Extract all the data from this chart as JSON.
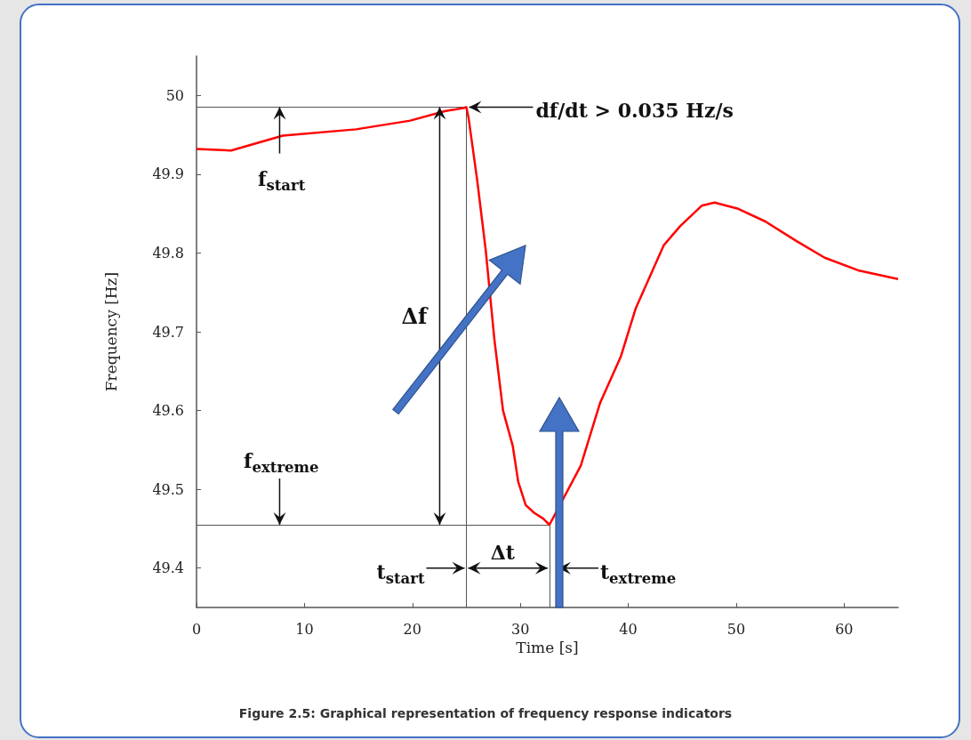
{
  "chart_data": {
    "type": "line",
    "title": "Figure 2.5: Graphical representation of frequency response indicators",
    "xlabel": "Time [s]",
    "ylabel": "Frequency [Hz]",
    "x": [
      0,
      3.2,
      8,
      14.8,
      19.8,
      23,
      24.7,
      25,
      25.2,
      26,
      26.8,
      27.6,
      28.4,
      29.3,
      29.8,
      30.5,
      31.3,
      32.1,
      32.7,
      35.6,
      37.4,
      39.3,
      40.7,
      43.3,
      44.8,
      46.8,
      48,
      50.2,
      52.7,
      55.6,
      58.2,
      61.3,
      65
    ],
    "series": [
      {
        "color": "#ff0000",
        "values": [
          49.932,
          49.93,
          49.949,
          49.957,
          49.968,
          49.98,
          49.984,
          49.985,
          49.972,
          49.893,
          49.803,
          49.69,
          49.6,
          49.555,
          49.51,
          49.48,
          49.47,
          49.463,
          49.455,
          49.53,
          49.61,
          49.668,
          49.73,
          49.81,
          49.834,
          49.86,
          49.864,
          49.856,
          49.84,
          49.815,
          49.794,
          49.778,
          49.767
        ]
      }
    ],
    "xlim": [
      0,
      65
    ],
    "xticks": [
      0,
      10,
      20,
      30,
      40,
      50,
      60
    ],
    "ylim": [
      49.35,
      50.05
    ],
    "yticks": [
      49.4,
      49.5,
      49.6,
      49.7,
      49.8,
      49.9,
      50
    ],
    "grid": false,
    "marker": "none",
    "line_style": "solid",
    "ref_lines": [
      {
        "axis": "y",
        "value": 49.985,
        "color": "#555555"
      },
      {
        "axis": "y",
        "value": 49.455,
        "color": "#555555"
      },
      {
        "axis": "x",
        "value": 25,
        "color": "#555555"
      },
      {
        "axis": "x",
        "value": 32.7,
        "color": "#555555"
      }
    ],
    "annotations": [
      {
        "text": "df/dt > 0.035 Hz/s",
        "x": 25,
        "y": 49.985
      },
      {
        "text": "f$_{start}$",
        "x": 7.7,
        "y": 49.985
      },
      "Δf",
      {
        "text": "f$_{extreme}$",
        "x": 7.7,
        "y": 49.455
      },
      {
        "text": "t$_{start}$",
        "x": 25,
        "y": 49.4
      },
      {
        "text": "Δt",
        "x": 32.7,
        "y": 49.4
      },
      {
        "text": "t$_{extreme}$",
        "x": 32.7,
        "y": 49.4
      }
    ]
  }
}
